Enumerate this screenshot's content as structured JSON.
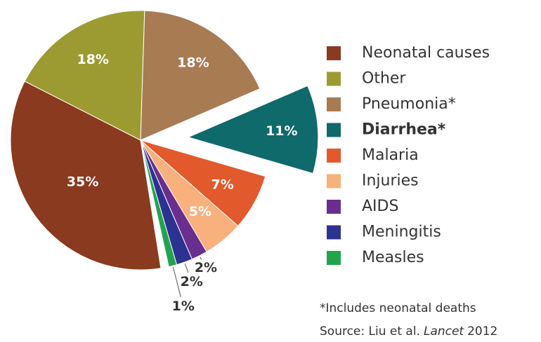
{
  "chart_data": {
    "type": "pie",
    "categories": [
      "Neonatal causes",
      "Other",
      "Pneumonia*",
      "Diarrhea*",
      "Malaria",
      "Injuries",
      "AIDS",
      "Meningitis",
      "Measles"
    ],
    "values": [
      35,
      18,
      18,
      11,
      7,
      5,
      2,
      2,
      1
    ],
    "value_labels": [
      "35%",
      "18%",
      "18%",
      "11%",
      "7%",
      "5%",
      "2%",
      "2%",
      "1%"
    ],
    "colors": [
      "#8a3a1e",
      "#9c9b32",
      "#a87b53",
      "#0f6a6c",
      "#e2592c",
      "#f8b17c",
      "#6a2e8e",
      "#2c3292",
      "#20a54c"
    ],
    "exploded_category": "Diarrhea*",
    "legend": "right",
    "footnote": "*Includes neonatal deaths",
    "source": {
      "prefix": "Source: Liu et al.",
      "journal": "Lancet",
      "year": "2012"
    }
  }
}
